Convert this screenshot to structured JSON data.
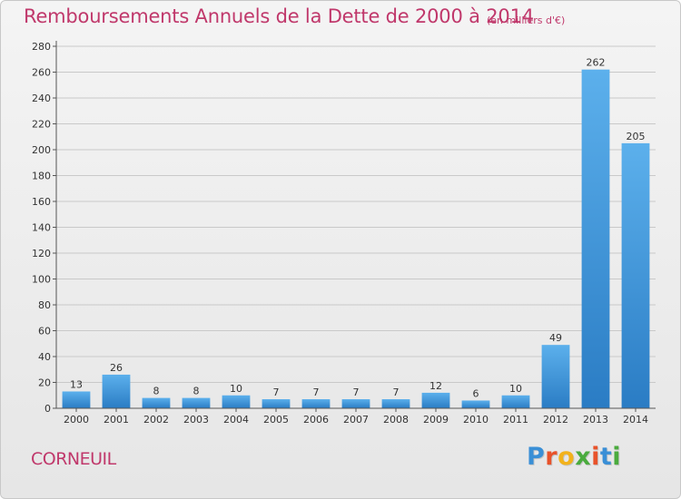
{
  "header": {
    "title": "Remboursements Annuels de la Dette de 2000 à 2014",
    "subtitle": "(en milliers d'€)"
  },
  "footer": {
    "commune": "CORNEUIL",
    "logo_letters": [
      "P",
      "r",
      "o",
      "x",
      "i",
      "t",
      "i"
    ],
    "logo_colors": [
      "#3a8fd6",
      "#e8522a",
      "#f2b21c",
      "#4aab3e",
      "#e8522a",
      "#3a8fd6",
      "#4aab3e"
    ]
  },
  "chart_data": {
    "type": "bar",
    "title": "Remboursements Annuels de la Dette de 2000 à 2014",
    "subtitle": "(en milliers d'€)",
    "categories": [
      "2000",
      "2001",
      "2002",
      "2003",
      "2004",
      "2005",
      "2006",
      "2007",
      "2008",
      "2009",
      "2010",
      "2011",
      "2012",
      "2013",
      "2014"
    ],
    "values": [
      13,
      26,
      8,
      8,
      10,
      7,
      7,
      7,
      7,
      12,
      6,
      10,
      49,
      262,
      205
    ],
    "ylim": [
      0,
      280
    ],
    "yticks": [
      0,
      20,
      40,
      60,
      80,
      100,
      120,
      140,
      160,
      180,
      200,
      220,
      240,
      260,
      280
    ],
    "grid": true,
    "bar_color": "#3d9ae0"
  }
}
